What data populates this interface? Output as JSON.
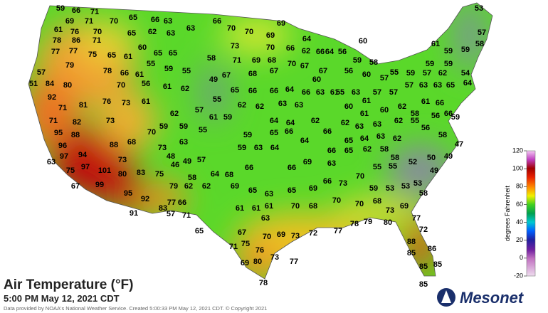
{
  "title": "Air Temperature (°F)",
  "timestamp": "5:00 PM May 12, 2021 CDT",
  "credit": "Data provided by NOAA's National Weather Service. Created 5:00:33 PM May 12, 2021 CDT. © Copyright 2021",
  "logo": "Mesonet",
  "legend": {
    "label": "degrees Fahrenheit",
    "ticks": [
      120,
      100,
      80,
      60,
      40,
      20,
      0,
      -20
    ]
  },
  "stations": [
    59,
    66,
    71,
    69,
    71,
    70,
    61,
    76,
    70,
    78,
    86,
    71,
    77,
    77,
    75,
    65,
    57,
    79,
    78,
    51,
    84,
    80,
    92,
    71,
    81,
    76,
    73,
    71,
    82,
    73,
    95,
    88,
    96,
    97,
    94,
    63,
    75,
    97,
    101,
    67,
    99,
    95,
    92,
    91,
    80,
    83,
    73,
    88,
    68,
    70,
    73,
    75,
    46,
    79,
    62,
    77,
    66,
    83,
    57,
    71,
    65,
    65,
    66,
    63,
    66,
    70,
    70,
    69,
    69,
    62,
    63,
    63,
    65,
    60,
    65,
    65,
    61,
    55,
    59,
    55,
    58,
    73,
    71,
    69,
    68,
    70,
    67,
    66,
    62,
    70,
    61,
    66,
    70,
    56,
    61,
    62,
    49,
    67,
    68,
    67,
    55,
    65,
    66,
    66,
    64,
    66,
    63,
    61,
    61,
    62,
    57,
    61,
    59,
    62,
    62,
    63,
    63,
    59,
    59,
    55,
    59,
    64,
    64,
    62,
    63,
    48,
    49,
    57,
    59,
    63,
    64,
    65,
    66,
    64,
    58,
    64,
    68,
    66,
    66,
    69,
    66,
    63,
    62,
    69,
    65,
    63,
    65,
    69,
    66,
    73,
    70,
    59,
    53,
    61,
    61,
    61,
    63,
    70,
    68,
    70,
    70,
    68,
    73,
    69,
    67,
    70,
    69,
    73,
    72,
    77,
    78,
    79,
    80,
    77,
    72,
    88,
    85,
    86,
    85,
    85,
    85,
    71,
    75,
    76,
    73,
    69,
    80,
    77,
    78,
    64,
    66,
    64,
    56,
    60,
    59,
    58,
    56,
    60,
    57,
    55,
    59,
    57,
    62,
    54,
    59,
    59,
    59,
    59,
    57,
    58,
    61,
    53,
    67,
    60,
    55,
    63,
    57,
    57,
    57,
    63,
    63,
    65,
    64,
    60,
    61,
    61,
    60,
    62,
    58,
    61,
    66,
    66,
    62,
    63,
    63,
    62,
    55,
    56,
    59,
    66,
    65,
    64,
    63,
    62,
    56,
    58,
    47,
    65,
    62,
    58,
    58,
    52,
    50,
    49,
    49,
    55,
    55,
    53,
    53,
    58
  ]
}
